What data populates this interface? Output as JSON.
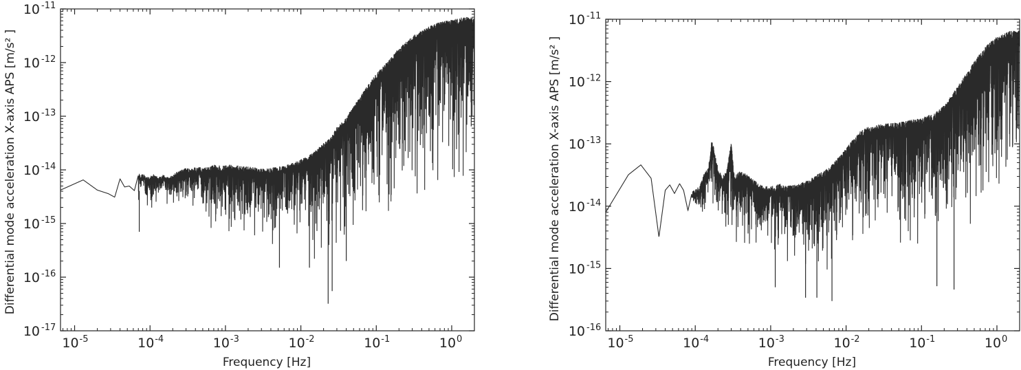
{
  "chart_data": [
    {
      "type": "line",
      "xlabel": "Frequency [Hz]",
      "ylabel": "Differential mode acceleration X-axis APS [m/s² ]",
      "xscale": "log",
      "yscale": "log",
      "xlim": [
        6.5e-06,
        2.0
      ],
      "ylim": [
        1e-17,
        1e-11
      ],
      "xticks": [
        {
          "base": "10",
          "exp": "-5",
          "value": 1e-05
        },
        {
          "base": "10",
          "exp": "-4",
          "value": 0.0001
        },
        {
          "base": "10",
          "exp": "-3",
          "value": 0.001
        },
        {
          "base": "10",
          "exp": "-2",
          "value": 0.01
        },
        {
          "base": "10",
          "exp": "-1",
          "value": 0.1
        },
        {
          "base": "10",
          "exp": "0",
          "value": 1
        }
      ],
      "yticks": [
        {
          "base": "10",
          "exp": "-17",
          "value": 1e-17
        },
        {
          "base": "10",
          "exp": "-16",
          "value": 1e-16
        },
        {
          "base": "10",
          "exp": "-15",
          "value": 1e-15
        },
        {
          "base": "10",
          "exp": "-14",
          "value": 1e-14
        },
        {
          "base": "10",
          "exp": "-13",
          "value": 1e-13
        },
        {
          "base": "10",
          "exp": "-12",
          "value": 1e-12
        },
        {
          "base": "10",
          "exp": "-11",
          "value": 1e-11
        }
      ],
      "grid": false,
      "color": "#2a2a2a",
      "series": [
        {
          "x": [
            6.5e-06,
            1.3e-05,
            2e-05,
            2.8e-05,
            3.4e-05,
            4e-05,
            4.6e-05,
            5.3e-05,
            6.2e-05,
            7e-05,
            8e-05,
            9e-05,
            0.0001,
            0.000115,
            0.00013,
            0.00015,
            0.00017,
            0.0002,
            0.00023,
            0.00026,
            0.0003,
            0.00035,
            0.0004,
            0.0005,
            0.0006,
            0.0007,
            0.0008,
            0.001,
            0.0012,
            0.0015,
            0.002,
            0.0025,
            0.003,
            0.004,
            0.005,
            0.006,
            0.008,
            0.01,
            0.013,
            0.016,
            0.02,
            0.023,
            0.025,
            0.03,
            0.04,
            0.05,
            0.07,
            0.1,
            0.15,
            0.2,
            0.3,
            0.5,
            0.7,
            1,
            1.5,
            2
          ],
          "upper": [
            4.2e-15,
            6.5e-15,
            4.2e-15,
            3.6e-15,
            3.1e-15,
            6.8e-15,
            4.8e-15,
            5e-15,
            4.1e-15,
            8e-15,
            8.5e-15,
            7e-15,
            7.5e-15,
            8e-15,
            7e-15,
            8e-15,
            7e-15,
            7.5e-15,
            9e-15,
            9.5e-15,
            1.05e-14,
            1e-14,
            1.1e-14,
            1.05e-14,
            1.1e-14,
            1.2e-14,
            1.15e-14,
            1.15e-14,
            1.2e-14,
            1.15e-14,
            1.1e-14,
            1.05e-14,
            1e-14,
            1.05e-14,
            1.1e-14,
            1.15e-14,
            1.3e-14,
            1.5e-14,
            1.8e-14,
            2.3e-14,
            3e-14,
            3.5e-14,
            4e-14,
            6e-14,
            9e-14,
            1.5e-13,
            3e-13,
            6e-13,
            1.1e-12,
            1.8e-12,
            3e-12,
            4.5e-12,
            5.5e-12,
            6e-12,
            6.8e-12,
            6.5e-12
          ],
          "lower": [
            4.2e-15,
            6.5e-15,
            4.2e-15,
            3.6e-15,
            3.1e-15,
            6.8e-15,
            4.8e-15,
            5e-15,
            4.1e-15,
            7e-16,
            4e-15,
            1.1e-15,
            2e-15,
            1e-15,
            3e-15,
            2.5e-15,
            2e-15,
            1.5e-15,
            2e-15,
            1.6e-15,
            1.2e-15,
            1.5e-15,
            1e-15,
            1e-15,
            6e-16,
            8e-16,
            5e-16,
            5e-16,
            4e-16,
            5e-16,
            3e-16,
            4e-16,
            4.5e-16,
            3.5e-16,
            3e-16,
            4e-16,
            3e-16,
            3e-16,
            2.5e-16,
            2e-16,
            1.5e-16,
            1e-16,
            1.4e-16,
            2e-16,
            3e-16,
            4e-16,
            4.5e-16,
            6e-16,
            7e-16,
            8e-16,
            9e-16,
            1e-15,
            1.2e-15,
            1.5e-15,
            2e-15,
            4e-15
          ],
          "spikes": [
            {
              "x": 7.2e-05,
              "y": 7e-16
            },
            {
              "x": 0.0052,
              "y": 1.5e-16
            },
            {
              "x": 0.023,
              "y": 3.2e-17
            },
            {
              "x": 0.026,
              "y": 5.5e-17
            },
            {
              "x": 0.013,
              "y": 1.5e-16
            },
            {
              "x": 0.04,
              "y": 2e-16
            }
          ]
        }
      ]
    },
    {
      "type": "line",
      "xlabel": "Frequency [Hz]",
      "ylabel": "Differential mode acceleration X-axis APS [m/s² ]",
      "xscale": "log",
      "yscale": "log",
      "xlim": [
        6.5e-06,
        2.0
      ],
      "ylim": [
        1e-16,
        1e-11
      ],
      "xticks": [
        {
          "base": "10",
          "exp": "-5",
          "value": 1e-05
        },
        {
          "base": "10",
          "exp": "-4",
          "value": 0.0001
        },
        {
          "base": "10",
          "exp": "-3",
          "value": 0.001
        },
        {
          "base": "10",
          "exp": "-2",
          "value": 0.01
        },
        {
          "base": "10",
          "exp": "-1",
          "value": 0.1
        },
        {
          "base": "10",
          "exp": "0",
          "value": 1
        }
      ],
      "yticks": [
        {
          "base": "10",
          "exp": "-16",
          "value": 1e-16
        },
        {
          "base": "10",
          "exp": "-15",
          "value": 1e-15
        },
        {
          "base": "10",
          "exp": "-14",
          "value": 1e-14
        },
        {
          "base": "10",
          "exp": "-13",
          "value": 1e-13
        },
        {
          "base": "10",
          "exp": "-12",
          "value": 1e-12
        },
        {
          "base": "10",
          "exp": "-11",
          "value": 1e-11
        }
      ],
      "grid": false,
      "color": "#2a2a2a",
      "series": [
        {
          "x": [
            6.5e-06,
            1.3e-05,
            1.9e-05,
            2.6e-05,
            3.3e-05,
            4e-05,
            4.6e-05,
            5.3e-05,
            6.2e-05,
            7e-05,
            8e-05,
            9e-05,
            0.0001,
            0.000115,
            0.00013,
            0.00015,
            0.000165,
            0.0002,
            0.00023,
            0.00026,
            0.0003,
            0.00033,
            0.0004,
            0.0005,
            0.0006,
            0.0007,
            0.0008,
            0.001,
            0.0013,
            0.0016,
            0.002,
            0.0025,
            0.003,
            0.004,
            0.005,
            0.006,
            0.008,
            0.01,
            0.012,
            0.015,
            0.02,
            0.03,
            0.05,
            0.07,
            0.1,
            0.15,
            0.2,
            0.3,
            0.5,
            0.7,
            1,
            1.5,
            2
          ],
          "upper": [
            8e-15,
            3.2e-14,
            4.6e-14,
            2.8e-14,
            3.2e-15,
            1.8e-14,
            2.2e-14,
            1.6e-14,
            2.3e-14,
            1.8e-14,
            8.5e-15,
            1.6e-14,
            1.8e-14,
            2e-14,
            3.2e-14,
            4e-14,
            1.2e-13,
            4e-14,
            3e-14,
            3.5e-14,
            1e-13,
            3e-14,
            3.5e-14,
            3e-14,
            2.5e-14,
            2.2e-14,
            2e-14,
            2e-14,
            2.2e-14,
            2e-14,
            2.1e-14,
            2.2e-14,
            2.5e-14,
            3e-14,
            3.5e-14,
            4e-14,
            6e-14,
            8e-14,
            1.1e-13,
            1.5e-13,
            1.8e-13,
            2e-13,
            2.1e-13,
            2.3e-13,
            2.5e-13,
            3e-13,
            4e-13,
            8e-13,
            2e-12,
            3.5e-12,
            5e-12,
            6.2e-12,
            6.5e-12
          ],
          "lower": [
            8e-15,
            3.2e-14,
            4.6e-14,
            2.8e-14,
            3.2e-15,
            1.8e-14,
            2.2e-14,
            1.6e-14,
            2.3e-14,
            1.8e-14,
            8.5e-15,
            1.1e-14,
            6e-15,
            5e-15,
            5e-15,
            1e-14,
            5e-15,
            5e-15,
            4e-15,
            3e-15,
            3e-15,
            2.5e-15,
            2.2e-15,
            2e-15,
            1.8e-15,
            1.2e-15,
            1.5e-15,
            1.2e-15,
            1e-15,
            1e-15,
            8e-16,
            7e-16,
            6e-16,
            5e-16,
            5e-16,
            6e-16,
            7e-16,
            8e-16,
            9e-16,
            1e-15,
            1.1e-15,
            1.3e-15,
            1.4e-15,
            1.5e-15,
            1.7e-15,
            1.8e-15,
            2e-15,
            2e-15,
            2.5e-15,
            3e-15,
            3.5e-15,
            3.8e-15,
            4.5e-15
          ],
          "spikes": [
            {
              "x": 0.0029,
              "y": 3.4e-16
            },
            {
              "x": 0.0041,
              "y": 3.4e-16
            },
            {
              "x": 0.0065,
              "y": 3e-16
            },
            {
              "x": 0.00115,
              "y": 5e-16
            },
            {
              "x": 0.16,
              "y": 5.2e-16
            },
            {
              "x": 0.27,
              "y": 4.6e-16
            }
          ]
        }
      ]
    }
  ]
}
